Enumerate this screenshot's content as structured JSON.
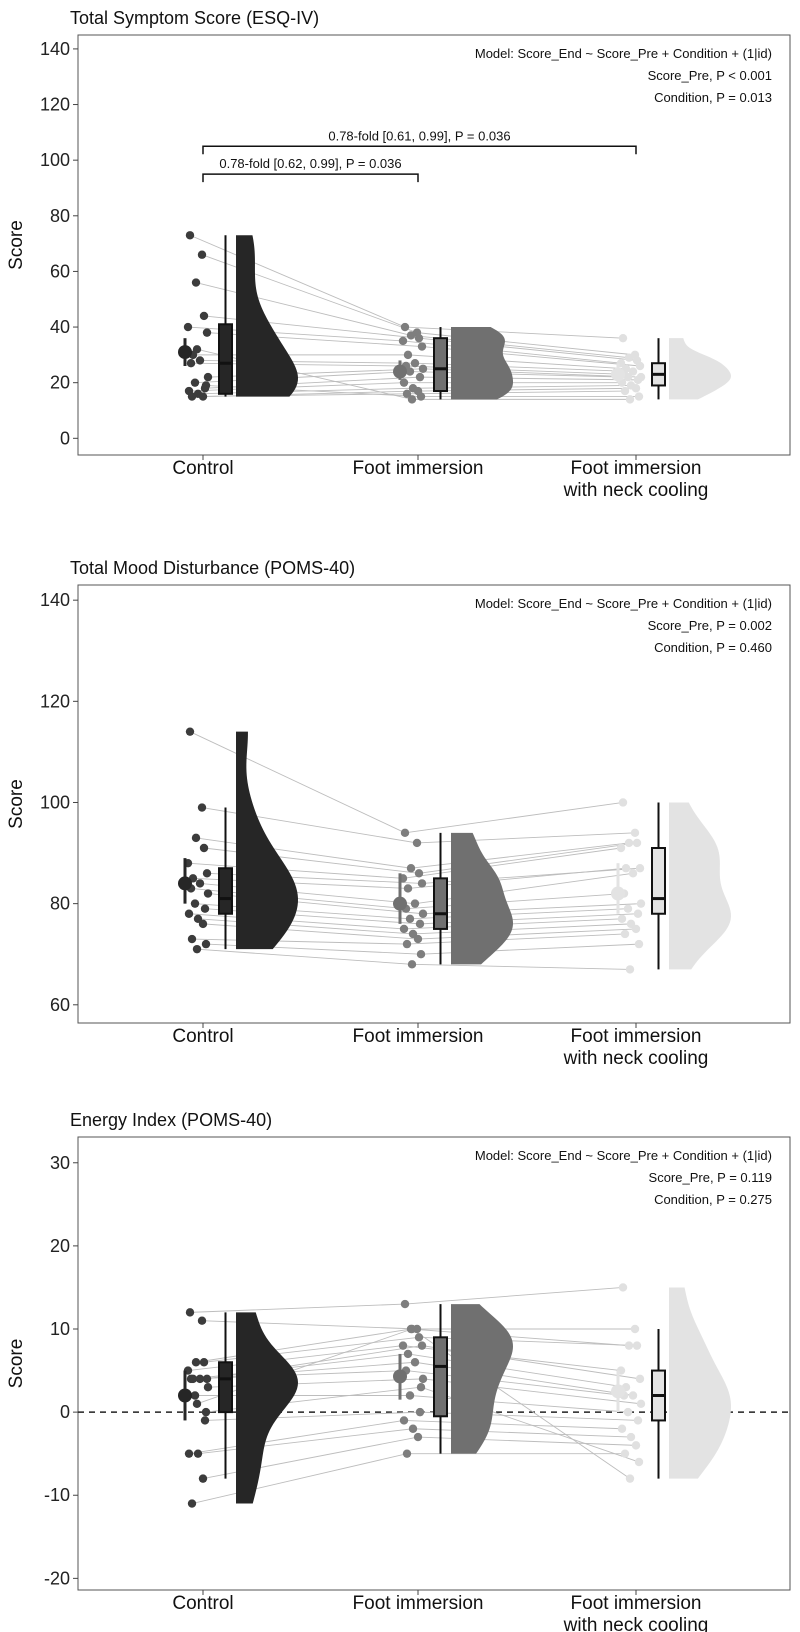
{
  "chart_data": [
    {
      "type": "raincloud",
      "title": "Total Symptom Score (ESQ-IV)",
      "ylabel": "Score",
      "ylim": [
        -6,
        145
      ],
      "yticks": [
        0,
        20,
        40,
        60,
        80,
        100,
        120,
        140
      ],
      "categories": [
        "Control",
        "Foot immersion",
        "Foot immersion\nwith neck cooling"
      ],
      "category_lines": [
        [
          "Control"
        ],
        [
          "Foot immersion"
        ],
        [
          "Foot immersion",
          "with neck cooling"
        ]
      ],
      "annotations": [
        "Model: Score_End ~  Score_Pre + Condition + (1|id)",
        "Score_Pre, P < 0.001",
        "Condition, P = 0.013"
      ],
      "brackets": [
        {
          "from": 0,
          "to": 1,
          "y": 95,
          "label": "0.78-fold [0.62, 0.99], P = 0.036"
        },
        {
          "from": 0,
          "to": 2,
          "y": 105,
          "label": "0.78-fold [0.61, 0.99], P = 0.036"
        }
      ],
      "groups": [
        {
          "points": [
            73,
            66,
            56,
            44,
            40,
            38,
            30,
            28,
            27,
            22,
            20,
            18,
            17,
            16,
            15,
            15,
            19,
            32
          ],
          "box": {
            "min": 15,
            "q1": 16,
            "median": 27,
            "q3": 41,
            "max": 73
          },
          "mean": 31,
          "ci": [
            26,
            36
          ]
        },
        {
          "points": [
            40,
            38,
            37,
            36,
            35,
            33,
            30,
            27,
            26,
            25,
            24,
            22,
            20,
            18,
            17,
            16,
            15,
            14
          ],
          "box": {
            "min": 14,
            "q1": 17,
            "median": 25,
            "q3": 36,
            "max": 40
          },
          "mean": 24,
          "ci": [
            21,
            28
          ]
        },
        {
          "points": [
            36,
            30,
            29,
            28,
            27,
            26,
            25,
            24,
            23,
            22,
            22,
            21,
            20,
            19,
            18,
            17,
            15,
            14
          ],
          "box": {
            "min": 14,
            "q1": 19,
            "median": 23,
            "q3": 27,
            "max": 36
          },
          "mean": 23,
          "ci": [
            20,
            27
          ]
        }
      ],
      "zero_line": false
    },
    {
      "type": "raincloud",
      "title": "Total Mood Disturbance (POMS-40)",
      "ylabel": "Score",
      "ylim": [
        56.4,
        143
      ],
      "yticks": [
        60,
        80,
        100,
        120,
        140
      ],
      "categories": [
        "Control",
        "Foot immersion",
        "Foot immersion\nwith neck cooling"
      ],
      "category_lines": [
        [
          "Control"
        ],
        [
          "Foot immersion"
        ],
        [
          "Foot immersion",
          "with neck cooling"
        ]
      ],
      "annotations": [
        "Model: Score_End ~  Score_Pre + Condition + (1|id)",
        "Score_Pre, P = 0.002",
        "Condition, P = 0.460"
      ],
      "brackets": [],
      "groups": [
        {
          "points": [
            114,
            99,
            93,
            91,
            88,
            86,
            85,
            84,
            83,
            82,
            80,
            79,
            78,
            77,
            76,
            73,
            72,
            71
          ],
          "box": {
            "min": 71,
            "q1": 78,
            "median": 81,
            "q3": 87,
            "max": 99
          },
          "mean": 84,
          "ci": [
            80,
            89
          ]
        },
        {
          "points": [
            94,
            92,
            87,
            86,
            85,
            84,
            83,
            80,
            79,
            78,
            77,
            76,
            75,
            74,
            73,
            72,
            70,
            68
          ],
          "box": {
            "min": 68,
            "q1": 75,
            "median": 78,
            "q3": 85,
            "max": 94
          },
          "mean": 80,
          "ci": [
            76,
            86
          ]
        },
        {
          "points": [
            100,
            94,
            92,
            92,
            91,
            87,
            87,
            86,
            82,
            80,
            79,
            78,
            77,
            76,
            75,
            74,
            72,
            67
          ],
          "box": {
            "min": 67,
            "q1": 78,
            "median": 81,
            "q3": 91,
            "max": 100
          },
          "mean": 82,
          "ci": [
            78,
            88
          ]
        }
      ],
      "zero_line": false
    },
    {
      "type": "raincloud",
      "title": "Energy Index (POMS-40)",
      "ylabel": "Score",
      "ylim": [
        -21.4,
        33.1
      ],
      "yticks": [
        -20,
        -10,
        0,
        10,
        20,
        30
      ],
      "categories": [
        "Control",
        "Foot immersion",
        "Foot immersion\nwith neck cooling"
      ],
      "category_lines": [
        [
          "Control"
        ],
        [
          "Foot immersion"
        ],
        [
          "Foot immersion",
          "with neck cooling"
        ]
      ],
      "annotations": [
        "Model: Score_End ~  Score_Pre + Condition + (1|id)",
        "Score_Pre, P = 0.119",
        "Condition, P = 0.275"
      ],
      "brackets": [],
      "groups": [
        {
          "points": [
            12,
            11,
            6,
            6,
            5,
            4,
            4,
            4,
            4,
            3,
            2,
            -1,
            -5,
            -5,
            -8,
            -11,
            0,
            1
          ],
          "box": {
            "min": -8,
            "q1": 0,
            "median": 4,
            "q3": 6,
            "max": 12
          },
          "mean": 2,
          "ci": [
            -1,
            5
          ]
        },
        {
          "points": [
            13,
            10,
            10,
            9,
            8,
            8,
            7,
            6,
            5,
            4,
            2,
            0,
            -1,
            -2,
            -3,
            -5,
            3,
            10
          ],
          "box": {
            "min": -5,
            "q1": -0.5,
            "median": 5.5,
            "q3": 9,
            "max": 13
          },
          "mean": 4.3,
          "ci": [
            1.5,
            7
          ]
        },
        {
          "points": [
            15,
            10,
            8,
            8,
            5,
            4,
            3,
            2,
            2,
            1,
            0,
            -1,
            -2,
            -3,
            -4,
            -5,
            -6,
            -8
          ],
          "box": {
            "min": -8,
            "q1": -1,
            "median": 2,
            "q3": 5,
            "max": 10
          },
          "mean": 2.5,
          "ci": [
            0,
            5
          ]
        }
      ],
      "zero_line": true
    }
  ],
  "colors": {
    "control_fill": "#262626",
    "foot_immersion_fill": "#707070",
    "neck_cooling_fill": "#e3e3e3",
    "control_point": "#3c3c3c",
    "foot_immersion_point": "#7e7e7e",
    "neck_cooling_point": "#e0e0e0",
    "subject_line": "#bdbdbd"
  }
}
